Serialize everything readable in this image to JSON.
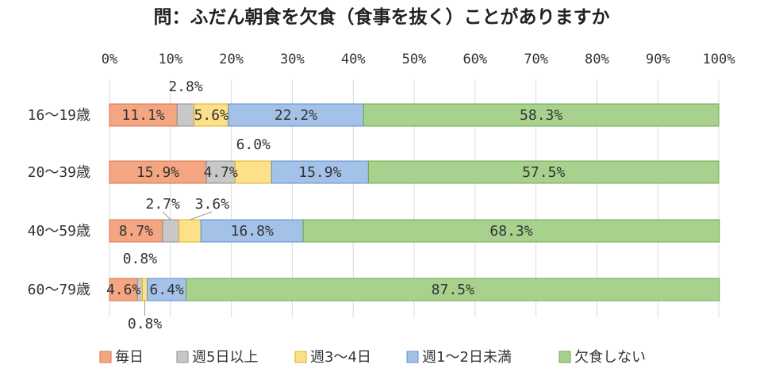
{
  "chart_data": {
    "type": "bar",
    "orientation": "horizontal",
    "stacked": "percent",
    "title": "問：ふだん朝食を欠食（食事を抜く）ことがありますか",
    "categories": [
      "16～19歳",
      "20～39歳",
      "40～59歳",
      "60～79歳"
    ],
    "series": [
      {
        "name": "毎日",
        "color": "#f4a582",
        "values": [
          11.1,
          15.9,
          8.7,
          4.6
        ],
        "labels": [
          "11.1%",
          "15.9%",
          "8.7%",
          "4.6%"
        ]
      },
      {
        "name": "週5日以上",
        "color": "#c8c8c8",
        "values": [
          2.8,
          4.7,
          2.7,
          0.8
        ],
        "labels": [
          "2.8%",
          "4.7%",
          "2.7%",
          "0.8%"
        ]
      },
      {
        "name": "週3～4日",
        "color": "#fce08a",
        "values": [
          5.6,
          6.0,
          3.6,
          0.8
        ],
        "labels": [
          "5.6%",
          "6.0%",
          "3.6%",
          "0.8%"
        ]
      },
      {
        "name": "週1～2日未満",
        "color": "#a4c2e8",
        "values": [
          22.2,
          15.9,
          16.8,
          6.4
        ],
        "labels": [
          "22.2%",
          "15.9%",
          "16.8%",
          "6.4%"
        ]
      },
      {
        "name": "欠食しない",
        "color": "#a9d18e",
        "values": [
          58.3,
          57.5,
          68.3,
          87.5
        ],
        "labels": [
          "58.3%",
          "57.5%",
          "68.3%",
          "87.5%"
        ]
      }
    ],
    "xlim": [
      0,
      100
    ],
    "xticks": [
      "0%",
      "10%",
      "20%",
      "30%",
      "40%",
      "50%",
      "60%",
      "70%",
      "80%",
      "90%",
      "100%"
    ],
    "grid": true,
    "legend": "bottom",
    "strokes": {
      "毎日": "#d9704a",
      "週5日以上": "#8c8c8c",
      "週3～4日": "#e0b020",
      "週1～2日未満": "#5b8fd0",
      "欠食しない": "#6aa84f"
    }
  }
}
